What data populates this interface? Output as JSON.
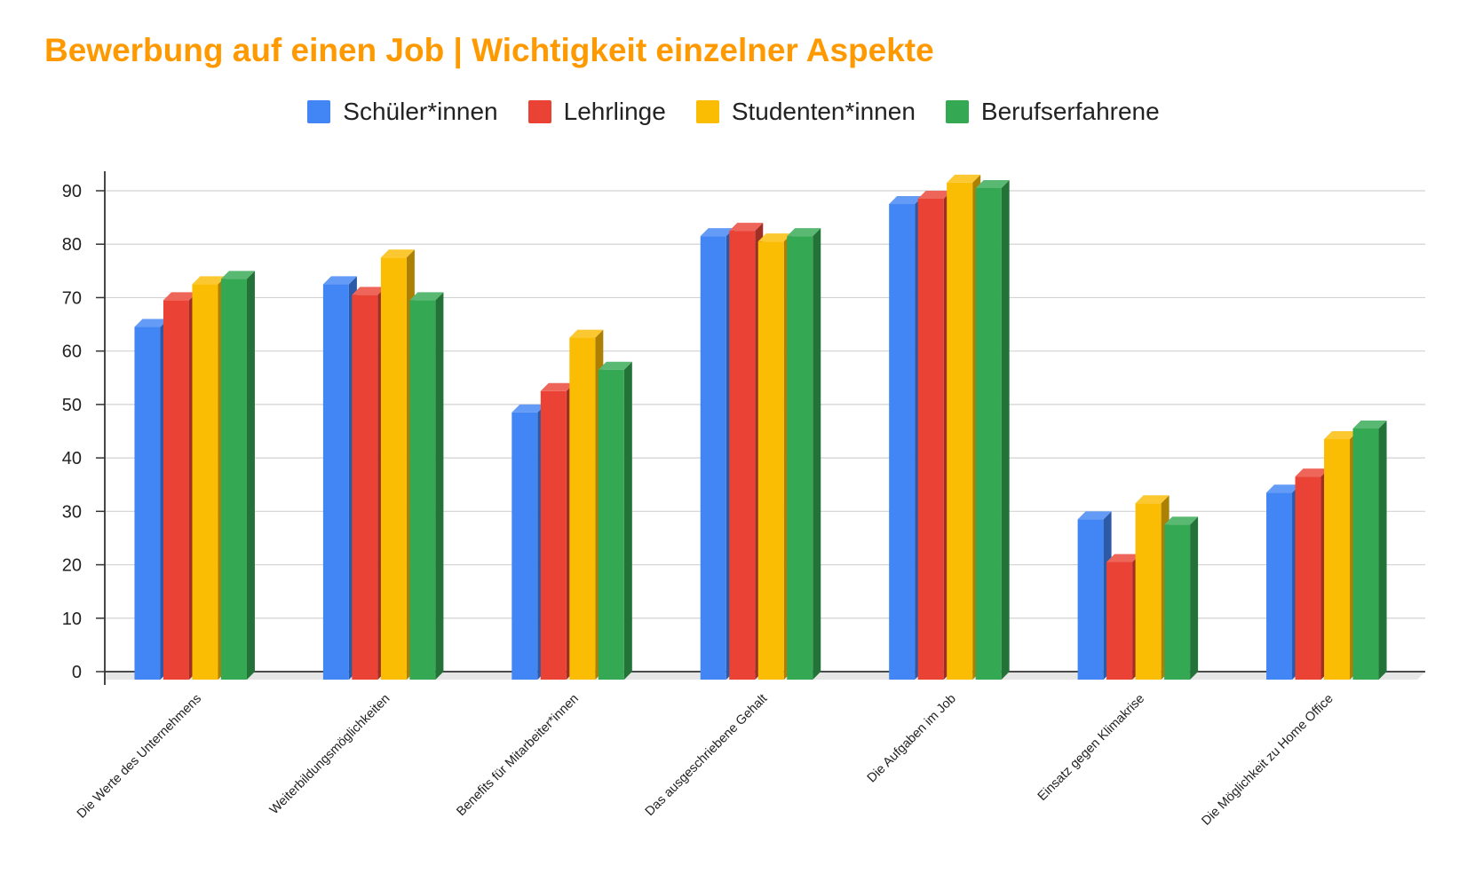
{
  "chart_data": {
    "type": "bar",
    "title": "Bewerbung auf einen Job | Wichtigkeit einzelner Aspekte",
    "xlabel": "",
    "ylabel": "",
    "ylim": [
      0,
      90
    ],
    "yticks": [
      0,
      10,
      20,
      30,
      40,
      50,
      60,
      70,
      80,
      90
    ],
    "grid": true,
    "legend_position": "top",
    "style": "3d-columns",
    "categories": [
      "Die Werte des Unternehmens",
      "Weiterbildungsmöglichkeiten",
      "Benefits für Mitarbeiter*innen",
      "Das ausgeschriebene Gehalt",
      "Die Aufgaben im Job",
      "Einsatz gegen Klimakrise",
      "Die Möglichkeit zu Home Office"
    ],
    "series": [
      {
        "name": "Schüler*innen",
        "color": "#4285f4",
        "values": [
          66,
          74,
          50,
          83,
          89,
          30,
          35
        ]
      },
      {
        "name": "Lehrlinge",
        "color": "#ea4335",
        "values": [
          71,
          72,
          54,
          84,
          90,
          22,
          38
        ]
      },
      {
        "name": "Studenten*innen",
        "color": "#fbbc04",
        "values": [
          74,
          79,
          64,
          82,
          93,
          33,
          45
        ]
      },
      {
        "name": "Berufserfahrene",
        "color": "#34a853",
        "values": [
          75,
          71,
          58,
          83,
          92,
          29,
          47
        ]
      }
    ]
  }
}
